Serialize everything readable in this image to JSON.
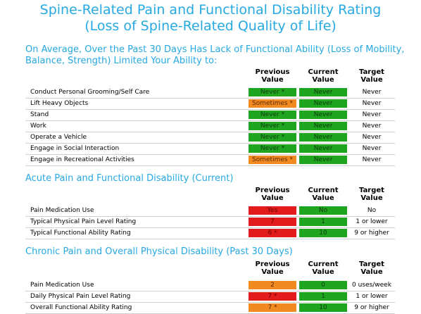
{
  "title": {
    "line1": "Spine-Related Pain and Functional Disability Rating",
    "line2": "(Loss of Spine-Related Quality of Life)"
  },
  "columns": {
    "previous": [
      "Previous",
      "Value"
    ],
    "current": [
      "Current",
      "Value"
    ],
    "target": [
      "Target",
      "Value"
    ]
  },
  "section1": {
    "heading_line1": "On Average, Over the Past 30 Days Has Lack of Functional Ability (Loss of Mobility,",
    "heading_line2": "Balance, Strength) Limited Your Ability to:",
    "rows": [
      {
        "label": "Conduct Personal Grooming/Self Care",
        "previous": "Never *",
        "current": "Never",
        "target": "Never",
        "previous_status": "green",
        "current_status": "green"
      },
      {
        "label": "Lift Heavy Objects",
        "previous": "Sometimes *",
        "current": "Never",
        "target": "Never",
        "previous_status": "orange",
        "current_status": "green"
      },
      {
        "label": "Stand",
        "previous": "Never *",
        "current": "Never",
        "target": "Never",
        "previous_status": "green",
        "current_status": "green"
      },
      {
        "label": "Work",
        "previous": "Never *",
        "current": "Never",
        "target": "Never",
        "previous_status": "green",
        "current_status": "green"
      },
      {
        "label": "Operate a Vehicle",
        "previous": "Never *",
        "current": "Never",
        "target": "Never",
        "previous_status": "green",
        "current_status": "green"
      },
      {
        "label": "Engage in Social Interaction",
        "previous": "Never *",
        "current": "Never",
        "target": "Never",
        "previous_status": "green",
        "current_status": "green"
      },
      {
        "label": "Engage in Recreational Activities",
        "previous": "Sometimes *",
        "current": "Never",
        "target": "Never",
        "previous_status": "orange",
        "current_status": "green"
      }
    ]
  },
  "section2": {
    "heading": "Acute Pain and Functional Disability (Current)",
    "rows": [
      {
        "label": "Pain Medication Use",
        "previous": "Yes",
        "current": "No",
        "target": "No",
        "previous_status": "red",
        "current_status": "green"
      },
      {
        "label": "Typical Physical Pain Level Rating",
        "previous": "7",
        "current": "1",
        "target": "1 or lower",
        "previous_status": "red",
        "current_status": "green"
      },
      {
        "label": "Typical Functional Ability Rating",
        "previous": "6 *",
        "current": "10",
        "target": "9 or higher",
        "previous_status": "red",
        "current_status": "green"
      }
    ]
  },
  "section3": {
    "heading": "Chronic Pain and Overall Physical Disability (Past 30 Days)",
    "rows": [
      {
        "label": "Pain Medication Use",
        "previous": "2",
        "current": "0",
        "target": "0 uses/week",
        "previous_status": "orange",
        "current_status": "green"
      },
      {
        "label": "Daily Physical Pain Level Rating",
        "previous": "7 *",
        "current": "1",
        "target": "1 or lower",
        "previous_status": "red",
        "current_status": "green"
      },
      {
        "label": "Overall Functional Ability Rating",
        "previous": "7 *",
        "current": "10",
        "target": "9 or higher",
        "previous_status": "orange",
        "current_status": "green"
      }
    ]
  },
  "status_colors": {
    "green": "#1fa51f",
    "orange": "#f28a22",
    "red": "#e21c1c"
  }
}
